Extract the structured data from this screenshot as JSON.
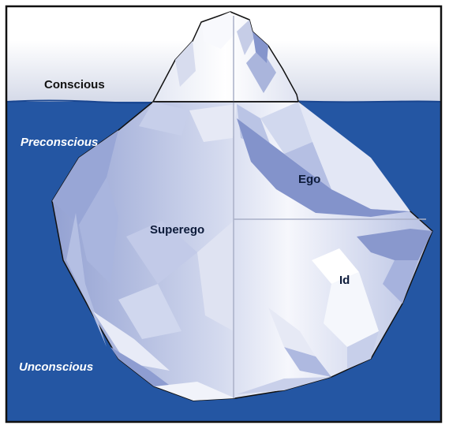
{
  "levels": {
    "conscious": "Conscious",
    "preconscious": "Preconscious",
    "unconscious": "Unconscious"
  },
  "parts": {
    "ego": "Ego",
    "superego": "Superego",
    "id": "Id"
  },
  "colors": {
    "sky": "#e9ecf4",
    "water": "#2456a3",
    "ice_light": "#f4f6fc",
    "ice_mid": "#c2cbe6",
    "ice_dark": "#7f8fc6",
    "frame": "#111111",
    "divider": "#a9b0c8"
  }
}
